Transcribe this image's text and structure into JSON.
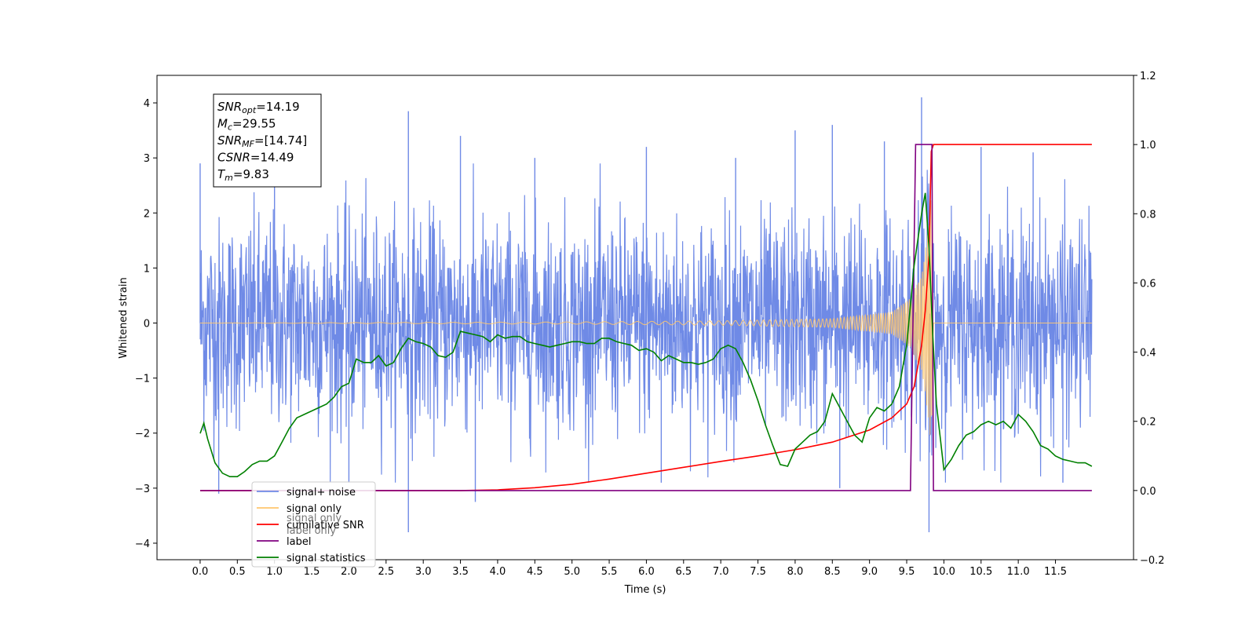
{
  "chart_data": {
    "type": "line",
    "xlabel": "Time (s)",
    "ylabel": "Whitened strain",
    "xlim": [
      -0.58,
      12.55
    ],
    "ylim": [
      -4.3,
      4.5
    ],
    "y2lim": [
      -0.2,
      1.2
    ],
    "x_ticks": [
      "0.0",
      "0.5",
      "1.0",
      "1.5",
      "2.0",
      "2.5",
      "3.0",
      "3.5",
      "4.0",
      "4.5",
      "5.0",
      "5.5",
      "6.0",
      "6.5",
      "7.0",
      "7.5",
      "8.0",
      "8.5",
      "9.0",
      "9.5",
      "10.0",
      "10.5",
      "11.0",
      "11.5"
    ],
    "y_ticks": [
      "4",
      "3",
      "2",
      "1",
      "0",
      "−1",
      "−2",
      "−3",
      "−4"
    ],
    "y2_ticks": [
      "1.2",
      "1.0",
      "0.8",
      "0.6",
      "0.4",
      "0.2",
      "0.0",
      "−0.2"
    ],
    "annotation": [
      {
        "base": "SNR",
        "sub": "opt",
        "value": "=14.19"
      },
      {
        "base": "M",
        "sub": "c",
        "value": "=29.55"
      },
      {
        "base": "SNR",
        "sub": "MF",
        "value": "=[14.74]"
      },
      {
        "base": "CSNR",
        "sub": "",
        "value": "=14.49"
      },
      {
        "base": "T",
        "sub": "m",
        "value": "=9.83"
      }
    ],
    "legend": {
      "placement": "lower-left",
      "entries": [
        {
          "label": "signal+ noise",
          "color": "#6f8ae6"
        },
        {
          "label": "signal only",
          "color": "#ffc66e"
        },
        {
          "label": "cumilative SNR",
          "color": "#ff0000"
        },
        {
          "label": "label",
          "color": "#800080"
        },
        {
          "label": "signal statistics",
          "color": "#008000"
        }
      ],
      "hidden_text": [
        "signal only",
        "label only"
      ]
    },
    "series": [
      {
        "name": "signal+ noise",
        "axis": "left",
        "color": "#6f8ae6",
        "x_range": [
          0.0,
          11.99
        ],
        "envelope_y": [
          -2.6,
          2.6
        ],
        "spikes": [
          {
            "x": 0.0,
            "y": 2.9
          },
          {
            "x": 0.25,
            "y": -3.1
          },
          {
            "x": 1.0,
            "y": 2.7
          },
          {
            "x": 2.0,
            "y": -2.9
          },
          {
            "x": 2.8,
            "y": 3.85
          },
          {
            "x": 2.8,
            "y": -3.8
          },
          {
            "x": 3.5,
            "y": 3.4
          },
          {
            "x": 3.7,
            "y": -3.25
          },
          {
            "x": 4.5,
            "y": 3.0
          },
          {
            "x": 6.0,
            "y": 3.2
          },
          {
            "x": 6.2,
            "y": -2.9
          },
          {
            "x": 7.2,
            "y": 3.0
          },
          {
            "x": 8.0,
            "y": 3.5
          },
          {
            "x": 8.5,
            "y": 3.6
          },
          {
            "x": 8.6,
            "y": -3.0
          },
          {
            "x": 9.2,
            "y": 3.3
          },
          {
            "x": 9.7,
            "y": 4.1
          },
          {
            "x": 9.8,
            "y": -3.8
          },
          {
            "x": 10.5,
            "y": 3.2
          },
          {
            "x": 11.2,
            "y": 3.1
          },
          {
            "x": 11.6,
            "y": -2.9
          }
        ]
      },
      {
        "name": "signal only",
        "axis": "left",
        "color": "#ffc66e",
        "x": [
          0.0,
          5.0,
          7.0,
          8.5,
          9.3,
          9.55,
          9.7,
          9.78,
          9.83,
          9.86,
          11.99
        ],
        "amplitude": [
          0.0,
          0.02,
          0.04,
          0.08,
          0.2,
          0.45,
          0.9,
          1.6,
          2.3,
          0.0,
          0.0
        ]
      },
      {
        "name": "cumilative SNR",
        "axis": "right",
        "color": "#ff0000",
        "x": [
          0.0,
          3.5,
          4.0,
          4.5,
          5.0,
          5.5,
          6.0,
          6.5,
          7.0,
          7.5,
          8.0,
          8.5,
          9.0,
          9.3,
          9.5,
          9.6,
          9.7,
          9.75,
          9.8,
          9.83,
          9.86,
          11.99
        ],
        "y": [
          0.0,
          0.0,
          0.002,
          0.008,
          0.018,
          0.033,
          0.05,
          0.067,
          0.084,
          0.1,
          0.118,
          0.14,
          0.175,
          0.21,
          0.25,
          0.3,
          0.42,
          0.52,
          0.68,
          0.98,
          1.0,
          1.0
        ]
      },
      {
        "name": "label",
        "axis": "right",
        "color": "#800080",
        "x": [
          0.0,
          9.55,
          9.62,
          9.84,
          9.86,
          11.99
        ],
        "y": [
          0.0,
          0.0,
          1.0,
          1.0,
          0.0,
          0.0
        ]
      },
      {
        "name": "signal statistics",
        "axis": "right",
        "color": "#008000",
        "x": [
          0.0,
          0.05,
          0.1,
          0.2,
          0.3,
          0.4,
          0.5,
          0.6,
          0.7,
          0.8,
          0.9,
          1.0,
          1.1,
          1.2,
          1.3,
          1.4,
          1.5,
          1.6,
          1.7,
          1.8,
          1.9,
          2.0,
          2.1,
          2.2,
          2.3,
          2.4,
          2.5,
          2.6,
          2.7,
          2.8,
          2.9,
          3.0,
          3.1,
          3.2,
          3.3,
          3.4,
          3.5,
          3.6,
          3.7,
          3.8,
          3.9,
          4.0,
          4.1,
          4.2,
          4.3,
          4.4,
          4.5,
          4.6,
          4.7,
          4.8,
          4.9,
          5.0,
          5.1,
          5.2,
          5.3,
          5.4,
          5.5,
          5.6,
          5.7,
          5.8,
          5.9,
          6.0,
          6.1,
          6.2,
          6.3,
          6.4,
          6.5,
          6.6,
          6.7,
          6.8,
          6.9,
          7.0,
          7.1,
          7.2,
          7.3,
          7.4,
          7.5,
          7.6,
          7.7,
          7.8,
          7.9,
          8.0,
          8.1,
          8.2,
          8.3,
          8.4,
          8.5,
          8.6,
          8.7,
          8.8,
          8.9,
          9.0,
          9.1,
          9.2,
          9.3,
          9.4,
          9.5,
          9.6,
          9.7,
          9.75,
          9.8,
          9.85,
          9.9,
          10.0,
          10.1,
          10.2,
          10.3,
          10.4,
          10.5,
          10.6,
          10.7,
          10.8,
          10.9,
          11.0,
          11.1,
          11.2,
          11.3,
          11.4,
          11.5,
          11.6,
          11.7,
          11.8,
          11.9,
          11.99
        ],
        "y": [
          0.165,
          0.195,
          0.15,
          0.08,
          0.05,
          0.04,
          0.04,
          0.055,
          0.075,
          0.085,
          0.085,
          0.1,
          0.14,
          0.18,
          0.21,
          0.22,
          0.23,
          0.24,
          0.25,
          0.27,
          0.3,
          0.31,
          0.38,
          0.37,
          0.37,
          0.39,
          0.36,
          0.37,
          0.41,
          0.44,
          0.43,
          0.425,
          0.415,
          0.39,
          0.385,
          0.4,
          0.46,
          0.455,
          0.45,
          0.445,
          0.43,
          0.45,
          0.44,
          0.445,
          0.445,
          0.43,
          0.425,
          0.42,
          0.415,
          0.42,
          0.425,
          0.43,
          0.43,
          0.425,
          0.425,
          0.44,
          0.44,
          0.43,
          0.425,
          0.42,
          0.405,
          0.41,
          0.4,
          0.375,
          0.39,
          0.38,
          0.37,
          0.37,
          0.365,
          0.37,
          0.38,
          0.41,
          0.42,
          0.41,
          0.37,
          0.32,
          0.26,
          0.19,
          0.13,
          0.075,
          0.07,
          0.12,
          0.14,
          0.16,
          0.17,
          0.2,
          0.28,
          0.24,
          0.2,
          0.16,
          0.14,
          0.21,
          0.24,
          0.23,
          0.25,
          0.3,
          0.42,
          0.65,
          0.8,
          0.86,
          0.7,
          0.45,
          0.25,
          0.06,
          0.09,
          0.13,
          0.16,
          0.17,
          0.19,
          0.2,
          0.19,
          0.2,
          0.18,
          0.22,
          0.2,
          0.17,
          0.13,
          0.12,
          0.1,
          0.09,
          0.085,
          0.08,
          0.08,
          0.07
        ]
      }
    ]
  }
}
